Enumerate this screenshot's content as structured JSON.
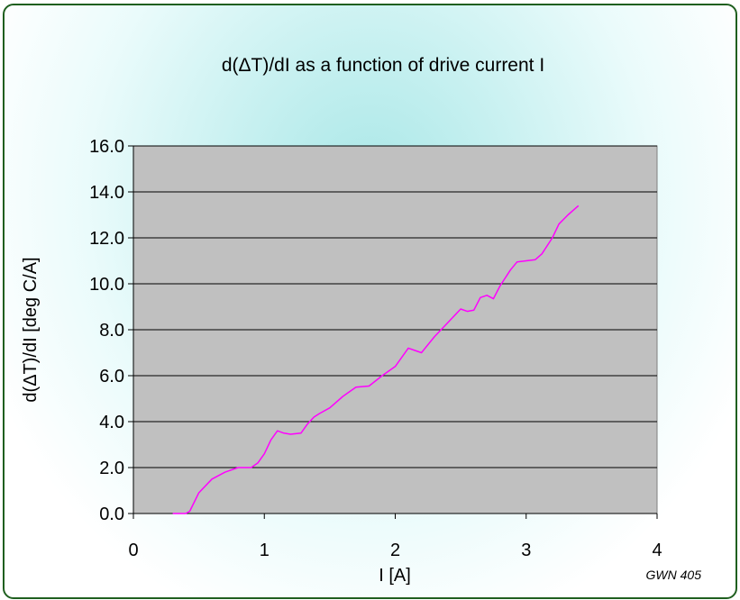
{
  "chart_data": {
    "type": "line",
    "title": "d(ΔT)/dI as a function of drive current I",
    "xlabel": "I [A]",
    "ylabel": "d(ΔT)/dI [deg C/A]",
    "xlim": [
      0,
      4
    ],
    "ylim": [
      0,
      16
    ],
    "xticks": [
      "0",
      "1",
      "2",
      "3",
      "4"
    ],
    "yticks": [
      "0.0",
      "2.0",
      "4.0",
      "6.0",
      "8.0",
      "10.0",
      "12.0",
      "14.0",
      "16.0"
    ],
    "grid": "horizontal",
    "plot_background": "#c0c0c0",
    "series": [
      {
        "color": "#ff00ff",
        "x": [
          0.3,
          0.4,
          0.43,
          0.5,
          0.6,
          0.7,
          0.8,
          0.9,
          0.95,
          1.0,
          1.05,
          1.1,
          1.15,
          1.2,
          1.28,
          1.33,
          1.38,
          1.42,
          1.5,
          1.6,
          1.7,
          1.8,
          1.9,
          2.0,
          2.05,
          2.1,
          2.15,
          2.2,
          2.3,
          2.4,
          2.5,
          2.55,
          2.6,
          2.65,
          2.7,
          2.75,
          2.8,
          2.88,
          2.93,
          3.0,
          3.07,
          3.12,
          3.2,
          3.25,
          3.32,
          3.4
        ],
        "y": [
          0.0,
          0.0,
          0.1,
          0.9,
          1.5,
          1.8,
          2.0,
          2.0,
          2.2,
          2.6,
          3.2,
          3.6,
          3.5,
          3.45,
          3.5,
          3.9,
          4.2,
          4.35,
          4.6,
          5.1,
          5.5,
          5.55,
          6.0,
          6.4,
          6.8,
          7.2,
          7.1,
          7.0,
          7.7,
          8.3,
          8.9,
          8.8,
          8.85,
          9.4,
          9.5,
          9.35,
          9.9,
          10.6,
          10.95,
          11.0,
          11.05,
          11.3,
          12.0,
          12.6,
          13.0,
          13.4
        ]
      }
    ]
  },
  "footnote": "GWN 405"
}
